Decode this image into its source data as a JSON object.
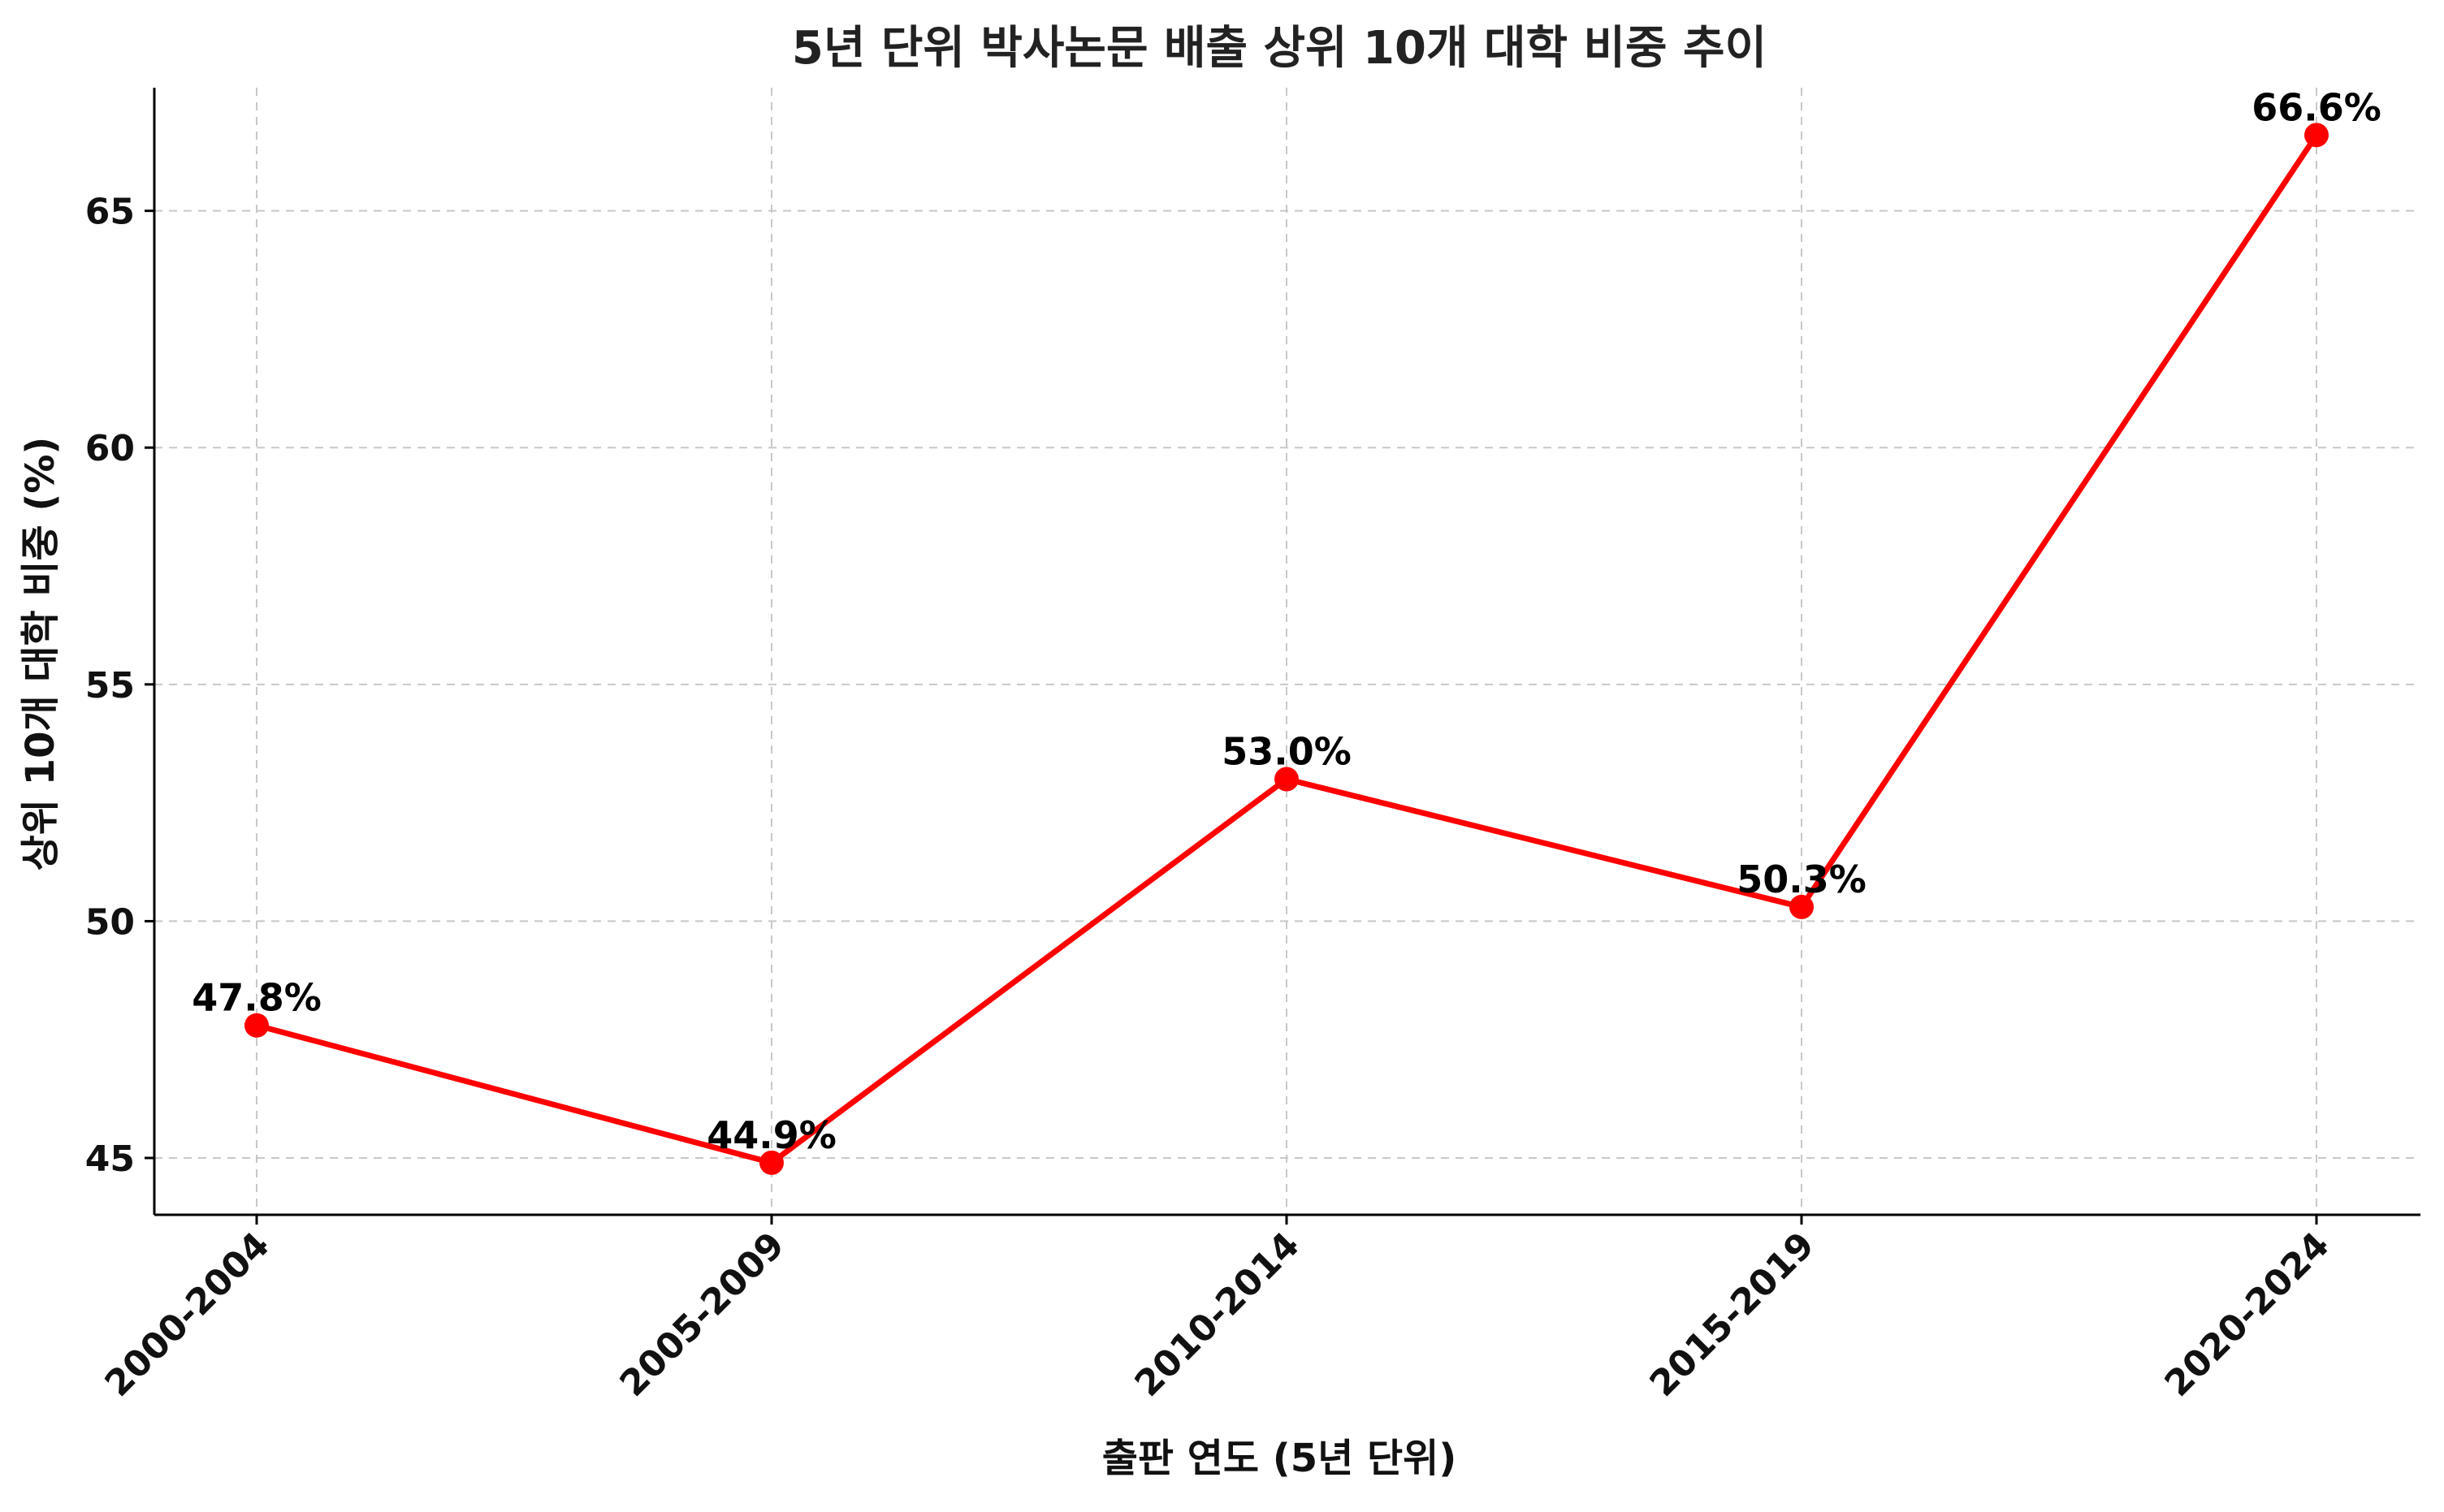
{
  "chart_data": {
    "type": "line",
    "title": "5년 단위 박사논문 배출 상위 10개 대학 비중 추이",
    "xlabel": "출판 연도 (5년 단위)",
    "ylabel": "상위 10개 대학 비중 (%)",
    "categories": [
      "2000-2004",
      "2005-2009",
      "2010-2014",
      "2015-2019",
      "2020-2024"
    ],
    "series": [
      {
        "values": [
          47.8,
          44.9,
          53.0,
          50.3,
          66.6
        ],
        "labels": [
          "47.8%",
          "44.9%",
          "53.0%",
          "50.3%",
          "66.6%"
        ],
        "color": "#ff0000"
      }
    ],
    "ylim": [
      43.8,
      67.6
    ],
    "yticks": [
      45,
      50,
      55,
      60,
      65
    ],
    "ytick_labels": [
      "45",
      "50",
      "55",
      "60",
      "65"
    ],
    "grid": true,
    "x_tick_rotation_deg": 45
  }
}
